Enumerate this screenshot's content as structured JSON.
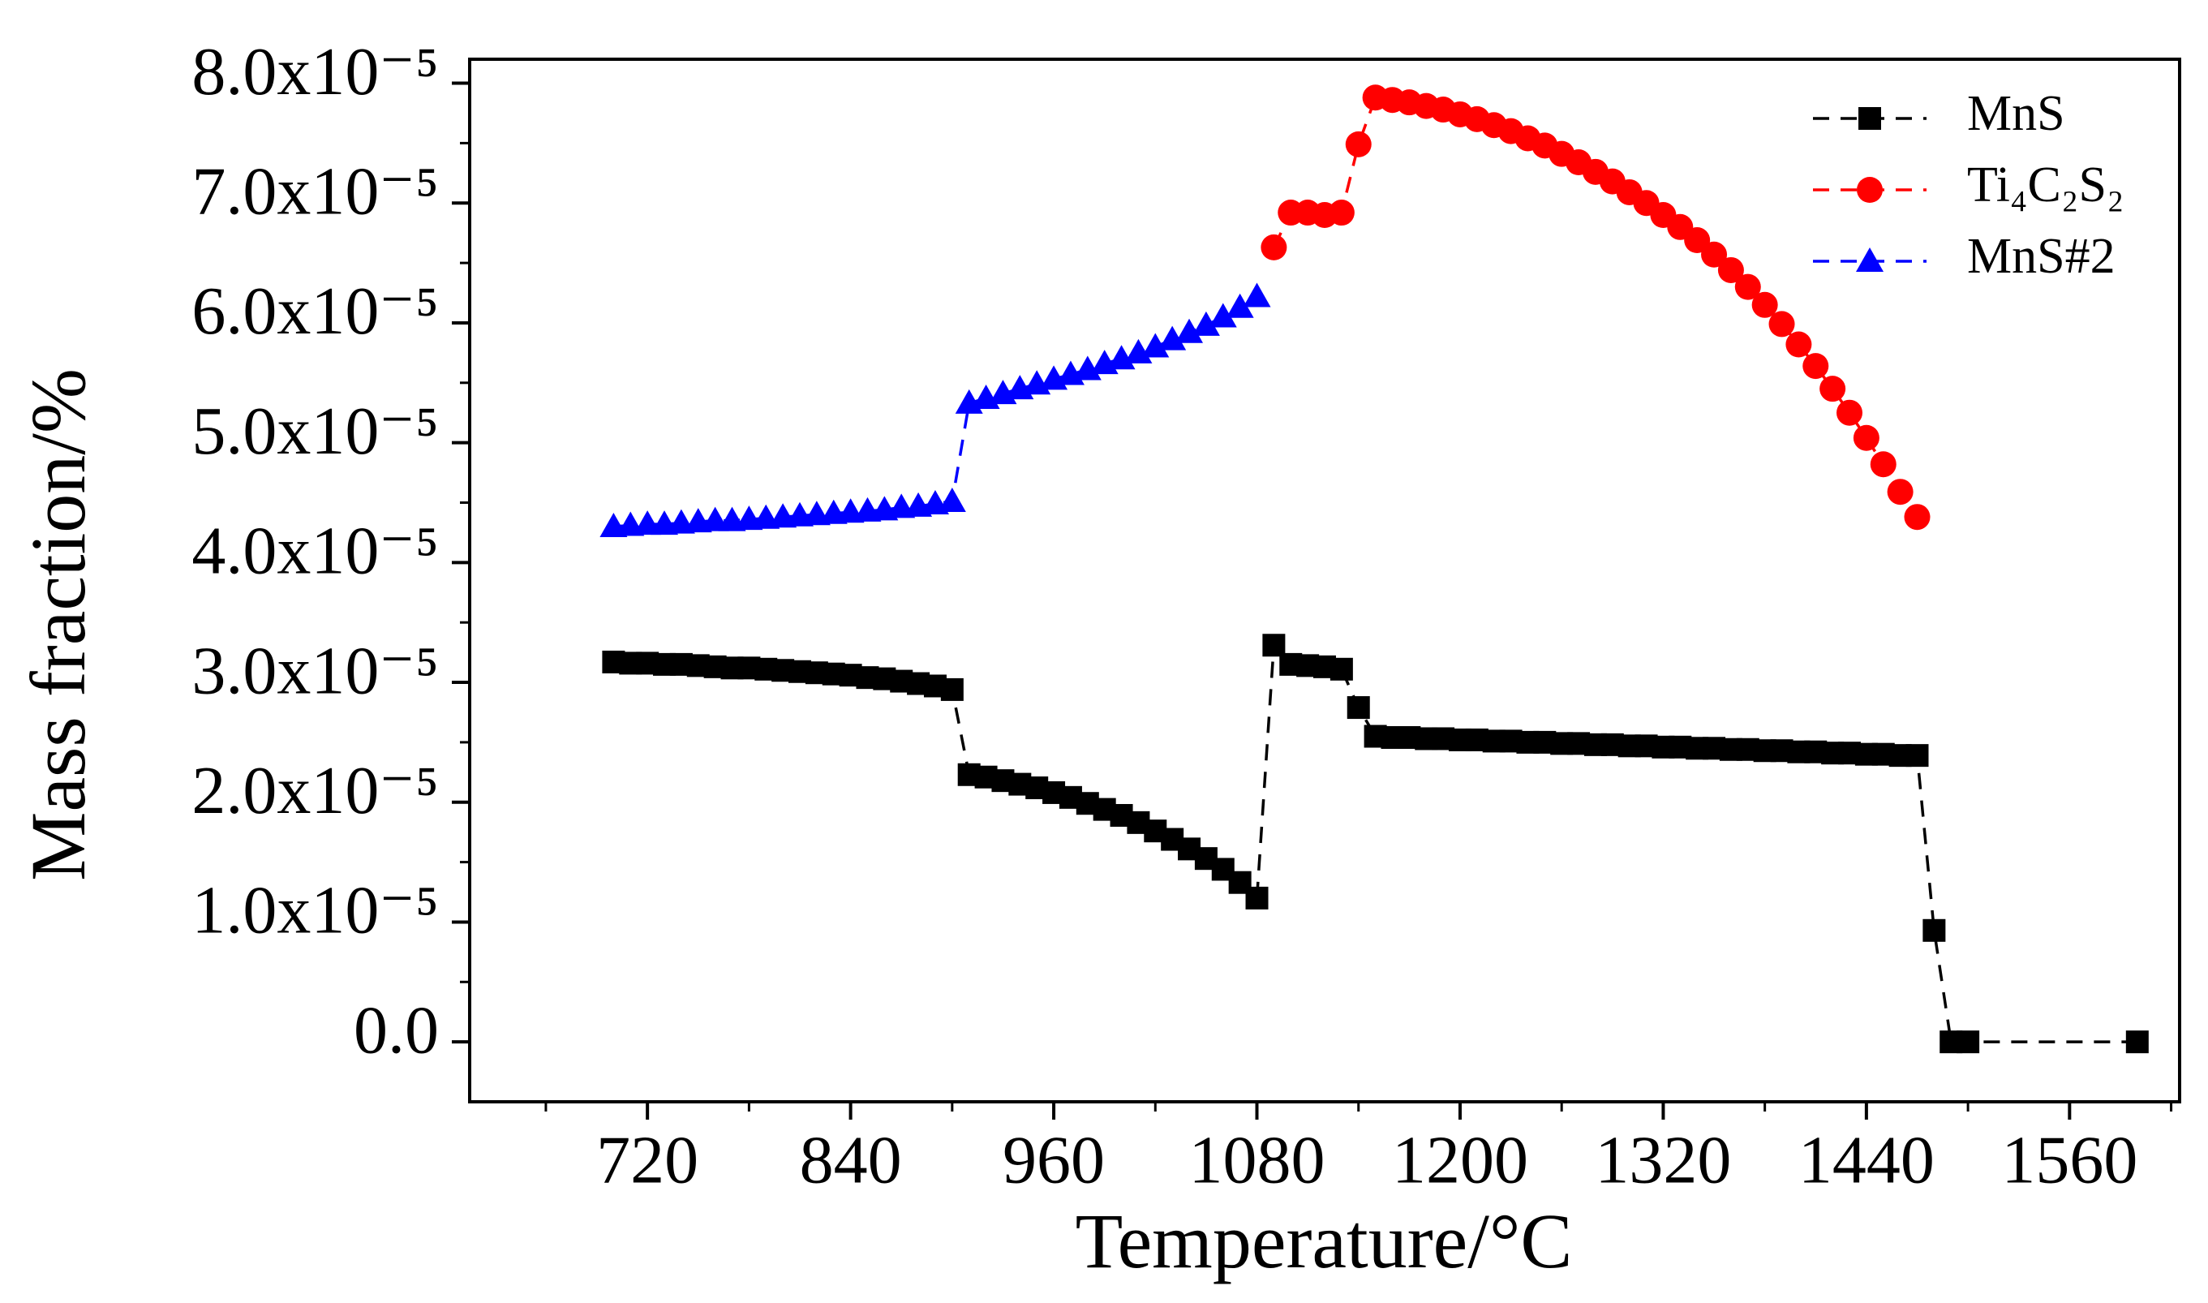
{
  "chart_data": {
    "type": "line",
    "x_label": "Temperature/°C",
    "y_label": "Mass fraction/%",
    "xlim": [
      615,
      1625
    ],
    "xticks": [
      720,
      840,
      960,
      1080,
      1200,
      1320,
      1440,
      1560
    ],
    "xticks_minor": [
      660,
      780,
      900,
      1020,
      1140,
      1260,
      1380,
      1500,
      1620
    ],
    "ylim": [
      -5e-06,
      8.2e-05
    ],
    "yticks": [
      {
        "value": 0,
        "label": "0.0"
      },
      {
        "value": 1e-05,
        "label": "1.0x10⁻⁵"
      },
      {
        "value": 2e-05,
        "label": "2.0x10⁻⁵"
      },
      {
        "value": 3e-05,
        "label": "3.0x10⁻⁵"
      },
      {
        "value": 4e-05,
        "label": "4.0x10⁻⁵"
      },
      {
        "value": 5e-05,
        "label": "5.0x10⁻⁵"
      },
      {
        "value": 6e-05,
        "label": "6.0x10⁻⁵"
      },
      {
        "value": 7e-05,
        "label": "7.0x10⁻⁵"
      },
      {
        "value": 8e-05,
        "label": "8.0x10⁻⁵"
      }
    ],
    "yticks_minor": [
      5e-06,
      1.5e-05,
      2.5e-05,
      3.5e-05,
      4.5e-05,
      5.5e-05,
      6.5e-05,
      7.5e-05
    ],
    "legend": "upper right",
    "series": [
      {
        "name": "MnS",
        "color": "#000000",
        "marker": "square",
        "x": [
          700,
          710,
          720,
          730,
          740,
          750,
          760,
          770,
          780,
          790,
          800,
          810,
          820,
          830,
          840,
          850,
          860,
          870,
          880,
          890,
          900,
          910,
          920,
          930,
          940,
          950,
          960,
          970,
          980,
          990,
          1000,
          1010,
          1020,
          1030,
          1040,
          1050,
          1060,
          1070,
          1080,
          1090,
          1100,
          1110,
          1120,
          1130,
          1140,
          1150,
          1160,
          1170,
          1180,
          1190,
          1200,
          1210,
          1220,
          1230,
          1240,
          1250,
          1260,
          1270,
          1280,
          1290,
          1300,
          1310,
          1320,
          1330,
          1340,
          1350,
          1360,
          1370,
          1380,
          1390,
          1400,
          1410,
          1420,
          1430,
          1440,
          1450,
          1460,
          1470,
          1480,
          1490,
          1500,
          1600
        ],
        "values": [
          3.17e-05,
          3.16e-05,
          3.16e-05,
          3.15e-05,
          3.15e-05,
          3.14e-05,
          3.13e-05,
          3.12e-05,
          3.12e-05,
          3.11e-05,
          3.1e-05,
          3.09e-05,
          3.08e-05,
          3.07e-05,
          3.06e-05,
          3.04e-05,
          3.03e-05,
          3.01e-05,
          2.99e-05,
          2.97e-05,
          2.94e-05,
          2.23e-05,
          2.21e-05,
          2.18e-05,
          2.15e-05,
          2.12e-05,
          2.08e-05,
          2.04e-05,
          1.99e-05,
          1.94e-05,
          1.89e-05,
          1.83e-05,
          1.76e-05,
          1.69e-05,
          1.61e-05,
          1.53e-05,
          1.44e-05,
          1.33e-05,
          1.2e-05,
          3.31e-05,
          3.15e-05,
          3.14e-05,
          3.13e-05,
          3.11e-05,
          2.79e-05,
          2.55e-05,
          2.54e-05,
          2.54e-05,
          2.53e-05,
          2.53e-05,
          2.52e-05,
          2.52e-05,
          2.51e-05,
          2.51e-05,
          2.5e-05,
          2.5e-05,
          2.49e-05,
          2.49e-05,
          2.48e-05,
          2.48e-05,
          2.47e-05,
          2.47e-05,
          2.46e-05,
          2.46e-05,
          2.45e-05,
          2.45e-05,
          2.44e-05,
          2.44e-05,
          2.43e-05,
          2.43e-05,
          2.42e-05,
          2.42e-05,
          2.41e-05,
          2.41e-05,
          2.4e-05,
          2.4e-05,
          2.39e-05,
          2.39e-05,
          9.3e-06,
          0,
          0,
          0
        ]
      },
      {
        "name": "Ti₄C₂S₂",
        "color": "#ff0000",
        "marker": "circle",
        "x": [
          1090,
          1100,
          1110,
          1120,
          1130,
          1140,
          1150,
          1160,
          1170,
          1180,
          1190,
          1200,
          1210,
          1220,
          1230,
          1240,
          1250,
          1260,
          1270,
          1280,
          1290,
          1300,
          1310,
          1320,
          1330,
          1340,
          1350,
          1360,
          1370,
          1380,
          1390,
          1400,
          1410,
          1420,
          1430,
          1440,
          1450,
          1460,
          1470
        ],
        "values": [
          6.63e-05,
          6.92e-05,
          6.92e-05,
          6.9e-05,
          6.92e-05,
          7.49e-05,
          7.88e-05,
          7.86e-05,
          7.84e-05,
          7.81e-05,
          7.78e-05,
          7.74e-05,
          7.7e-05,
          7.65e-05,
          7.6e-05,
          7.54e-05,
          7.48e-05,
          7.41e-05,
          7.34e-05,
          7.26e-05,
          7.18e-05,
          7.09e-05,
          7e-05,
          6.9e-05,
          6.8e-05,
          6.69e-05,
          6.57e-05,
          6.44e-05,
          6.3e-05,
          6.15e-05,
          5.99e-05,
          5.82e-05,
          5.64e-05,
          5.45e-05,
          5.25e-05,
          5.04e-05,
          4.82e-05,
          4.59e-05,
          4.38e-05
        ]
      },
      {
        "name": "MnS#2",
        "color": "#0000ff",
        "marker": "triangle",
        "x": [
          700,
          710,
          720,
          730,
          740,
          750,
          760,
          770,
          780,
          790,
          800,
          810,
          820,
          830,
          840,
          850,
          860,
          870,
          880,
          890,
          900,
          910,
          920,
          930,
          940,
          950,
          960,
          970,
          980,
          990,
          1000,
          1010,
          1020,
          1030,
          1040,
          1050,
          1060,
          1070,
          1080
        ],
        "values": [
          4.3e-05,
          4.31e-05,
          4.32e-05,
          4.32e-05,
          4.33e-05,
          4.34e-05,
          4.35e-05,
          4.35e-05,
          4.36e-05,
          4.37e-05,
          4.38e-05,
          4.39e-05,
          4.4e-05,
          4.41e-05,
          4.42e-05,
          4.43e-05,
          4.44e-05,
          4.46e-05,
          4.47e-05,
          4.49e-05,
          4.51e-05,
          5.33e-05,
          5.37e-05,
          5.41e-05,
          5.45e-05,
          5.49e-05,
          5.53e-05,
          5.57e-05,
          5.61e-05,
          5.66e-05,
          5.7e-05,
          5.75e-05,
          5.8e-05,
          5.86e-05,
          5.92e-05,
          5.98e-05,
          6.05e-05,
          6.13e-05,
          6.22e-05
        ]
      }
    ]
  }
}
